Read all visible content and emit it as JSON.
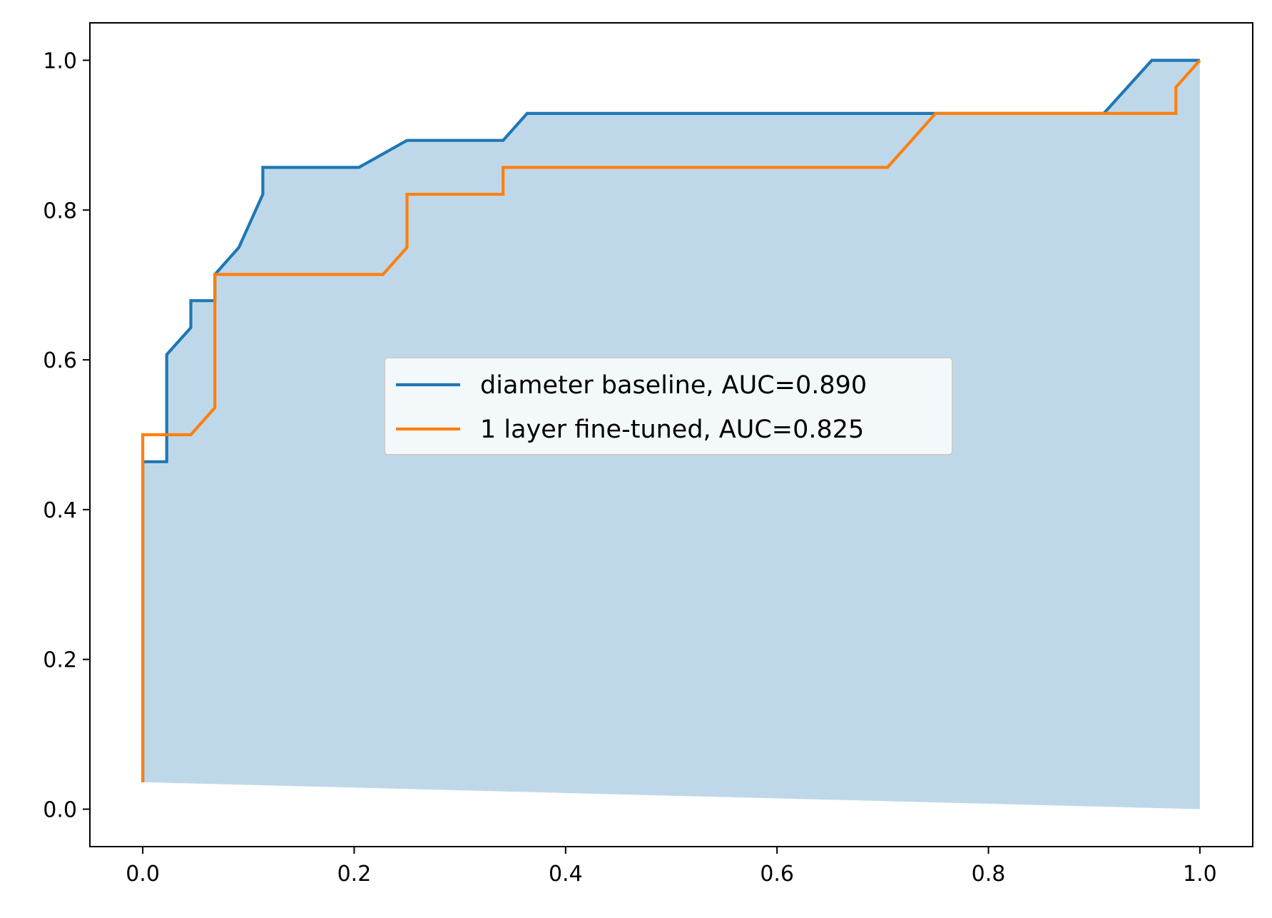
{
  "chart_data": {
    "type": "line",
    "title": "",
    "xlabel": "",
    "ylabel": "",
    "xlim": [
      -0.05,
      1.05
    ],
    "ylim": [
      -0.05,
      1.05
    ],
    "xticks": [
      0.0,
      0.2,
      0.4,
      0.6,
      0.8,
      1.0
    ],
    "yticks": [
      0.0,
      0.2,
      0.4,
      0.6,
      0.8,
      1.0
    ],
    "xtick_labels": [
      "0.0",
      "0.2",
      "0.4",
      "0.6",
      "0.8",
      "1.0"
    ],
    "ytick_labels": [
      "0.0",
      "0.2",
      "0.4",
      "0.6",
      "0.8",
      "1.0"
    ],
    "grid": false,
    "legend_position": "center",
    "series": [
      {
        "name": "diameter baseline, AUC=0.890",
        "color": "#1f77b4",
        "x": [
          0.0,
          0.0,
          0.0227,
          0.0227,
          0.0455,
          0.0455,
          0.0682,
          0.0682,
          0.0909,
          0.1136,
          0.1136,
          0.2045,
          0.25,
          0.3409,
          0.3636,
          0.9091,
          0.9545,
          1.0
        ],
        "y": [
          0.036,
          0.464,
          0.464,
          0.607,
          0.643,
          0.679,
          0.679,
          0.714,
          0.75,
          0.821,
          0.857,
          0.857,
          0.893,
          0.893,
          0.929,
          0.929,
          1.0,
          1.0
        ]
      },
      {
        "name": "1 layer fine-tuned, AUC=0.825",
        "color": "#ff7f0e",
        "x": [
          0.0,
          0.0,
          0.0455,
          0.0682,
          0.0682,
          0.2273,
          0.25,
          0.25,
          0.3409,
          0.3409,
          0.7045,
          0.75,
          0.9773,
          0.9773,
          1.0
        ],
        "y": [
          0.036,
          0.5,
          0.5,
          0.536,
          0.714,
          0.714,
          0.75,
          0.821,
          0.821,
          0.857,
          0.857,
          0.929,
          0.929,
          0.964,
          1.0
        ]
      }
    ],
    "fill": {
      "color": "#1f77b4",
      "opacity": 0.29,
      "upper": "diameter baseline, AUC=0.890",
      "lower_y": [
        0.036,
        0.0
      ]
    }
  }
}
